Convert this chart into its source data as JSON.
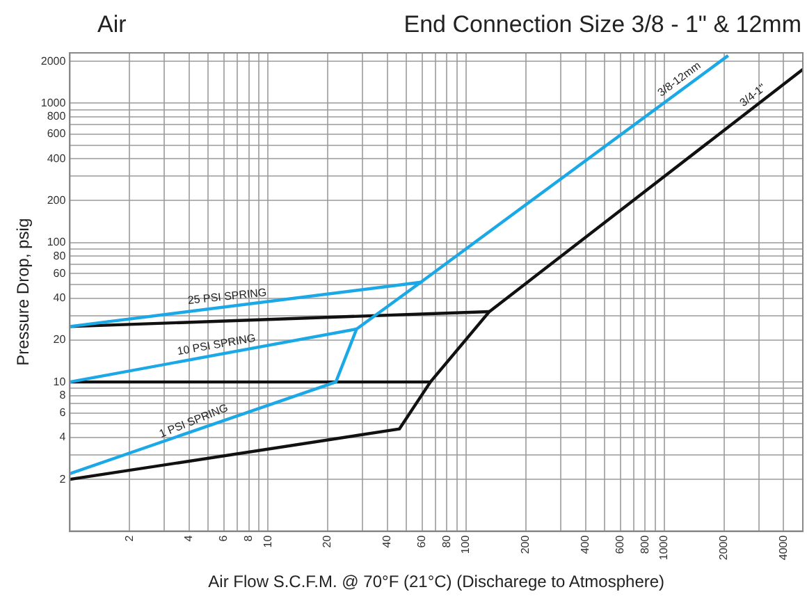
{
  "chart_data": {
    "type": "line",
    "title": "End Connection Size 3/8 - 1\" & 12mm",
    "subtitle": "Air",
    "xlabel": "Air Flow S.C.F.M. @ 70°F (21°C) (Discharege to Atmosphere)",
    "ylabel": "Pressure Drop, psig",
    "log": "xy",
    "grid": true,
    "legend": false,
    "marker": "none",
    "line_style": "solid",
    "xlim": [
      1,
      5000
    ],
    "ylim": [
      0.85,
      2300
    ],
    "xticks": [
      2,
      {
        "value": 3,
        "label": null
      },
      4,
      {
        "value": 5,
        "label": null
      },
      6,
      {
        "value": 7,
        "label": null
      },
      8,
      {
        "value": 9,
        "label": null
      },
      10,
      20,
      {
        "value": 30,
        "label": null
      },
      40,
      {
        "value": 50,
        "label": null
      },
      60,
      {
        "value": 70,
        "label": null
      },
      80,
      {
        "value": 90,
        "label": null
      },
      100,
      200,
      {
        "value": 300,
        "label": null
      },
      400,
      {
        "value": 500,
        "label": null
      },
      600,
      {
        "value": 700,
        "label": null
      },
      800,
      {
        "value": 900,
        "label": null
      },
      1000,
      2000,
      {
        "value": 3000,
        "label": null
      },
      4000
    ],
    "yticks": [
      2,
      {
        "value": 3,
        "label": null
      },
      4,
      {
        "value": 5,
        "label": null
      },
      6,
      {
        "value": 7,
        "label": null
      },
      8,
      {
        "value": 9,
        "label": null
      },
      10,
      20,
      {
        "value": 30,
        "label": null
      },
      40,
      {
        "value": 50,
        "label": null
      },
      60,
      {
        "value": 70,
        "label": null
      },
      80,
      {
        "value": 90,
        "label": null
      },
      100,
      200,
      {
        "value": 300,
        "label": null
      },
      400,
      {
        "value": 500,
        "label": null
      },
      600,
      {
        "value": 700,
        "label": null
      },
      800,
      {
        "value": 900,
        "label": null
      },
      1000,
      2000
    ],
    "series": [
      {
        "color": "#1ba8e6",
        "x": [
          1,
          59
        ],
        "values": [
          25,
          52
        ]
      },
      {
        "color": "#1ba8e6",
        "x": [
          1,
          28
        ],
        "values": [
          10,
          24
        ]
      },
      {
        "name": "3/8-12mm",
        "color": "#1ba8e6",
        "x": [
          1,
          22,
          28,
          59,
          2100
        ],
        "values": [
          2.2,
          10,
          24,
          52,
          2200
        ]
      },
      {
        "color": "#111111",
        "x": [
          1,
          131
        ],
        "values": [
          25,
          32
        ]
      },
      {
        "color": "#111111",
        "x": [
          1,
          66
        ],
        "values": [
          10,
          10
        ]
      },
      {
        "name": "3/4-1\"",
        "color": "#111111",
        "x": [
          1,
          46,
          66,
          131,
          5000
        ],
        "values": [
          2,
          4.6,
          10,
          32,
          1750
        ]
      }
    ],
    "annotations": [
      {
        "text": "25 PSI SPRING",
        "x": 6.3,
        "y": 34.8
      },
      {
        "text": "10 PSI SPRING",
        "x": 5.6,
        "y": 15.7
      },
      {
        "text": "1 PSI SPRING",
        "x": 4.4,
        "y": 4.5
      }
    ]
  }
}
